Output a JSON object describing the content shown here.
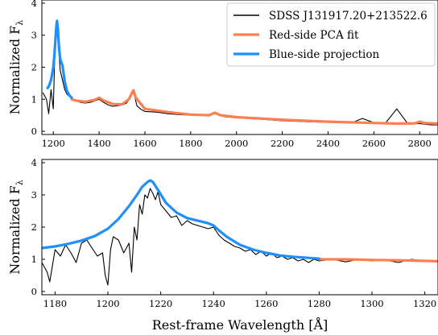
{
  "colors": {
    "spectrum": "#000000",
    "red_fit": "#ff7f50",
    "blue_proj": "#1e90ff",
    "legend_border": "#cccccc"
  },
  "chart_data": [
    {
      "type": "line",
      "panel": "top",
      "xlim": [
        1150,
        2880
      ],
      "ylim": [
        -0.1,
        4.1
      ],
      "xticks": [
        1200,
        1400,
        1600,
        1800,
        2000,
        2200,
        2400,
        2600,
        2800
      ],
      "xtick_labels": [
        "1200",
        "1400",
        "1600",
        "1800",
        "2000",
        "2200",
        "2400",
        "2600",
        "2800"
      ],
      "yticks": [
        0,
        1,
        2,
        3,
        4
      ],
      "ytick_labels": [
        "0",
        "1",
        "2",
        "3",
        "4"
      ],
      "ylabel": "Normalized F",
      "ylabel_sub": "λ",
      "xlabel": "",
      "legend_position": "upper right",
      "series": [
        {
          "name": "SDSS J131917.20+213522.6",
          "color": "#000000",
          "x": [
            1155,
            1170,
            1180,
            1190,
            1200,
            1205,
            1210,
            1213,
            1216,
            1220,
            1225,
            1230,
            1240,
            1250,
            1260,
            1270,
            1280,
            1300,
            1320,
            1340,
            1360,
            1380,
            1400,
            1420,
            1440,
            1460,
            1480,
            1500,
            1520,
            1535,
            1545,
            1550,
            1555,
            1565,
            1580,
            1600,
            1650,
            1700,
            1750,
            1800,
            1850,
            1880,
            1905,
            1920,
            1950,
            2000,
            2100,
            2200,
            2300,
            2400,
            2500,
            2550,
            2600,
            2650,
            2700,
            2750,
            2800,
            2850,
            2880
          ],
          "y": [
            1.2,
            1.0,
            0.55,
            1.3,
            0.7,
            2.0,
            2.9,
            3.15,
            3.3,
            3.0,
            2.4,
            1.9,
            1.6,
            1.3,
            1.15,
            1.1,
            1.0,
            0.95,
            0.9,
            0.88,
            0.9,
            0.95,
            1.0,
            0.9,
            0.82,
            0.78,
            0.8,
            0.82,
            0.88,
            1.05,
            1.2,
            1.25,
            1.1,
            0.8,
            0.7,
            0.62,
            0.6,
            0.55,
            0.52,
            0.5,
            0.5,
            0.52,
            0.6,
            0.52,
            0.45,
            0.42,
            0.38,
            0.33,
            0.3,
            0.28,
            0.26,
            0.4,
            0.27,
            0.25,
            0.7,
            0.22,
            0.24,
            0.2,
            0.2
          ]
        },
        {
          "name": "Red-side PCA fit",
          "color": "#ff7f50",
          "x": [
            1280,
            1300,
            1340,
            1380,
            1400,
            1420,
            1460,
            1500,
            1530,
            1545,
            1550,
            1560,
            1600,
            1700,
            1800,
            1880,
            1905,
            1930,
            2000,
            2200,
            2400,
            2600,
            2700,
            2780,
            2800,
            2820,
            2880
          ],
          "y": [
            1.0,
            0.96,
            0.92,
            0.98,
            1.05,
            0.96,
            0.85,
            0.84,
            1.0,
            1.22,
            1.28,
            1.05,
            0.7,
            0.6,
            0.52,
            0.5,
            0.58,
            0.5,
            0.44,
            0.36,
            0.3,
            0.26,
            0.24,
            0.25,
            0.3,
            0.26,
            0.24
          ]
        },
        {
          "name": "Blue-side projection",
          "color": "#1e90ff",
          "x": [
            1175,
            1180,
            1190,
            1200,
            1205,
            1210,
            1213,
            1216,
            1220,
            1225,
            1230,
            1240,
            1250,
            1260,
            1270,
            1280
          ],
          "y": [
            1.35,
            1.4,
            1.6,
            2.0,
            2.4,
            2.95,
            3.25,
            3.45,
            3.2,
            2.6,
            2.25,
            2.05,
            1.55,
            1.25,
            1.12,
            1.05
          ]
        }
      ],
      "legend_labels": [
        "SDSS J131917.20+213522.6",
        "Red-side PCA fit",
        "Blue-side projection"
      ]
    },
    {
      "type": "line",
      "panel": "bottom",
      "xlim": [
        1175,
        1325
      ],
      "ylim": [
        -0.1,
        4.1
      ],
      "xticks": [
        1180,
        1200,
        1220,
        1240,
        1260,
        1280,
        1300,
        1320
      ],
      "xtick_labels": [
        "1180",
        "1200",
        "1220",
        "1240",
        "1260",
        "1280",
        "1300",
        "1320"
      ],
      "yticks": [
        0,
        1,
        2,
        3,
        4
      ],
      "ytick_labels": [
        "0",
        "1",
        "2",
        "3",
        "4"
      ],
      "ylabel": "Normalized F",
      "ylabel_sub": "λ",
      "xlabel": "Rest-frame Wavelength [Å]",
      "series": [
        {
          "name": "SDSS J131917.20+213522.6",
          "color": "#000000",
          "x": [
            1175,
            1177,
            1178,
            1179,
            1180,
            1182,
            1184,
            1186,
            1188,
            1190,
            1192,
            1194,
            1196,
            1198,
            1199,
            1200,
            1201,
            1202,
            1204,
            1206,
            1208,
            1209,
            1210,
            1211,
            1212,
            1213,
            1214,
            1215,
            1216,
            1217,
            1218,
            1219,
            1220,
            1222,
            1224,
            1226,
            1228,
            1230,
            1232,
            1234,
            1236,
            1238,
            1240,
            1242,
            1244,
            1246,
            1248,
            1250,
            1252,
            1254,
            1256,
            1258,
            1260,
            1262,
            1264,
            1266,
            1268,
            1270,
            1272,
            1274,
            1276,
            1278,
            1280,
            1285,
            1290,
            1295,
            1300,
            1305,
            1310,
            1315,
            1320,
            1325
          ],
          "y": [
            0.9,
            0.6,
            0.3,
            0.8,
            1.3,
            1.1,
            1.45,
            1.2,
            0.9,
            1.5,
            1.6,
            1.35,
            1.1,
            1.2,
            0.5,
            0.2,
            1.3,
            1.7,
            1.6,
            1.2,
            1.5,
            0.6,
            2.0,
            1.6,
            2.7,
            2.4,
            3.0,
            2.9,
            3.2,
            3.05,
            2.85,
            3.1,
            2.7,
            2.5,
            2.3,
            2.35,
            2.05,
            2.2,
            2.1,
            2.05,
            2.0,
            1.95,
            2.0,
            1.75,
            1.6,
            1.5,
            1.4,
            1.35,
            1.25,
            1.3,
            1.15,
            1.25,
            1.1,
            1.2,
            1.05,
            1.1,
            1.0,
            1.05,
            0.95,
            1.0,
            0.9,
            1.0,
            0.95,
            1.0,
            0.92,
            1.0,
            0.95,
            0.98,
            0.9,
            1.0,
            0.95,
            0.92
          ]
        },
        {
          "name": "Red-side PCA fit",
          "color": "#ff7f50",
          "x": [
            1280,
            1290,
            1300,
            1310,
            1320,
            1325
          ],
          "y": [
            1.0,
            1.0,
            0.98,
            0.97,
            0.95,
            0.94
          ]
        },
        {
          "name": "Blue-side projection",
          "color": "#1e90ff",
          "x": [
            1175,
            1180,
            1185,
            1190,
            1195,
            1200,
            1204,
            1208,
            1211,
            1213,
            1215,
            1216,
            1217,
            1219,
            1222,
            1226,
            1230,
            1235,
            1238,
            1240,
            1242,
            1245,
            1250,
            1255,
            1260,
            1265,
            1270,
            1275,
            1280
          ],
          "y": [
            1.35,
            1.4,
            1.48,
            1.58,
            1.72,
            1.95,
            2.25,
            2.65,
            3.0,
            3.25,
            3.4,
            3.45,
            3.4,
            3.15,
            2.75,
            2.45,
            2.28,
            2.18,
            2.12,
            2.05,
            1.9,
            1.7,
            1.45,
            1.3,
            1.2,
            1.12,
            1.08,
            1.05,
            1.02
          ]
        }
      ]
    }
  ]
}
